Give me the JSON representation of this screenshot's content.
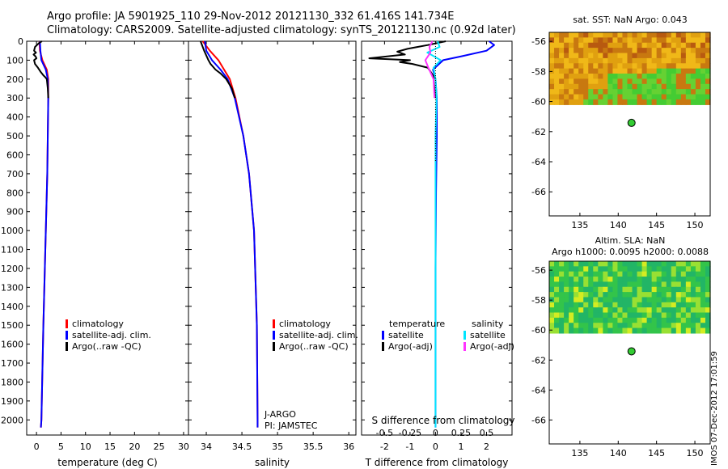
{
  "header": {
    "line1": "Argo profile: JA 5901925_110 29-Nov-2012 20121130_332 61.416S 141.734E",
    "line2": "Climatology: CARS2009. Satellite-adjusted climatology: synTS_20121130.nc (0.92d later)"
  },
  "stamp": "IMOS 07-Dec-2012 17:01:59",
  "colors": {
    "climatology": "#ff0000",
    "satellite": "#0000ff",
    "argo": "#000000",
    "sal_satellite": "#00e5ff",
    "sal_argo": "#ff33ff",
    "marker": "#33cc33"
  },
  "chart_data": [
    {
      "id": "temperature",
      "type": "line",
      "xlabel": "temperature (deg C)",
      "ylabel": "",
      "xlim": [
        -2,
        31
      ],
      "ylim": [
        2080,
        0
      ],
      "xticks": [
        0,
        5,
        10,
        15,
        20,
        25,
        30
      ],
      "yticks": [
        0,
        100,
        200,
        300,
        400,
        500,
        600,
        700,
        800,
        900,
        1000,
        1100,
        1200,
        1300,
        1400,
        1500,
        1600,
        1700,
        1800,
        1900,
        2000
      ],
      "legend": [
        "climatology",
        "satellite-adj. clim.",
        "Argo(..raw -QC)"
      ],
      "series": [
        {
          "name": "climatology",
          "color": "#ff0000",
          "depth": [
            0,
            50,
            100,
            150,
            200,
            300,
            500,
            700,
            1000,
            1500,
            2000,
            2040
          ],
          "values": [
            0.6,
            0.7,
            1.2,
            2.1,
            2.4,
            2.4,
            2.3,
            2.2,
            1.9,
            1.4,
            1.0,
            0.9
          ]
        },
        {
          "name": "satellite-adj. clim.",
          "color": "#0000ff",
          "depth": [
            0,
            50,
            100,
            150,
            200,
            300,
            500,
            700,
            1000,
            1500,
            2000,
            2040
          ],
          "values": [
            0.7,
            0.8,
            1.0,
            1.9,
            2.3,
            2.4,
            2.3,
            2.2,
            1.9,
            1.4,
            1.0,
            0.9
          ]
        },
        {
          "name": "Argo(..raw -QC)",
          "color": "#000000",
          "depth": [
            0,
            10,
            30,
            50,
            60,
            70,
            80,
            90,
            100,
            120,
            140,
            160,
            180,
            190,
            200,
            250,
            300
          ],
          "values": [
            1.1,
            0.5,
            -0.3,
            -0.5,
            -0.1,
            -0.6,
            -0.2,
            0.0,
            -0.5,
            -0.3,
            0.3,
            0.8,
            1.4,
            1.8,
            2.1,
            2.3,
            2.4
          ]
        }
      ]
    },
    {
      "id": "salinity",
      "type": "line",
      "xlabel": "salinity",
      "ylabel": "",
      "xlim": [
        33.75,
        36.1
      ],
      "ylim": [
        2080,
        0
      ],
      "xticks": [
        34,
        34.5,
        35,
        35.5,
        36
      ],
      "xticklabels": [
        "34",
        "34.5",
        "35",
        "35.5",
        "36"
      ],
      "legend": [
        "climatology",
        "satellite-adj. clim.",
        "Argo(..raw -QC)"
      ],
      "annotations": [
        "J-ARGO",
        "PI: JAMSTEC"
      ],
      "series": [
        {
          "name": "climatology",
          "color": "#ff0000",
          "depth": [
            0,
            50,
            100,
            150,
            200,
            300,
            500,
            700,
            1000,
            1500,
            2000,
            2040
          ],
          "values": [
            33.95,
            34.05,
            34.17,
            34.25,
            34.33,
            34.41,
            34.52,
            34.6,
            34.67,
            34.71,
            34.72,
            34.72
          ]
        },
        {
          "name": "satellite-adj. clim.",
          "color": "#0000ff",
          "depth": [
            0,
            50,
            100,
            150,
            200,
            300,
            500,
            700,
            1000,
            1500,
            2000,
            2040
          ],
          "values": [
            33.98,
            34.0,
            34.08,
            34.2,
            34.3,
            34.4,
            34.52,
            34.6,
            34.67,
            34.71,
            34.72,
            34.72
          ]
        },
        {
          "name": "Argo(..raw -QC)",
          "color": "#000000",
          "depth": [
            0,
            50,
            100,
            120,
            150,
            170,
            200,
            250,
            300
          ],
          "values": [
            33.92,
            33.97,
            34.03,
            34.06,
            34.13,
            34.2,
            34.28,
            34.36,
            34.4
          ]
        }
      ]
    },
    {
      "id": "difference",
      "type": "line",
      "xlabel": "T difference from climatology",
      "top_label": "S difference from climatology",
      "xlim": [
        -2.9,
        3.0
      ],
      "ylim": [
        2080,
        0
      ],
      "xticks": [
        -2,
        -1,
        0,
        1,
        2
      ],
      "xticks_top": [
        -0.5,
        -0.25,
        0,
        0.25,
        0.5
      ],
      "legend_headers": [
        "temperature",
        "salinity"
      ],
      "legend": [
        "satellite",
        "Argo(-adj)",
        "satellite",
        "Argo(-adj)"
      ],
      "series": [
        {
          "name": "satellite",
          "group": "temperature",
          "color": "#0000ff",
          "depth": [
            0,
            20,
            50,
            80,
            100,
            150,
            200,
            300,
            500,
            800,
            1200,
            1600,
            2040
          ],
          "values": [
            2.1,
            2.3,
            2.0,
            1.0,
            0.3,
            -0.1,
            0.0,
            0.05,
            0.05,
            0.02,
            0.0,
            0.0,
            0.0
          ]
        },
        {
          "name": "Argo(-adj)",
          "group": "temperature",
          "color": "#000000",
          "depth": [
            0,
            20,
            40,
            55,
            70,
            80,
            90,
            100,
            110,
            120,
            140,
            160,
            180,
            200,
            250,
            300
          ],
          "values": [
            0.4,
            -0.3,
            -1.1,
            -1.5,
            -1.2,
            -1.9,
            -2.6,
            -1.0,
            -1.4,
            -0.9,
            -0.3,
            -0.2,
            -0.1,
            0.0,
            0.0,
            0.0
          ]
        },
        {
          "name": "satellite",
          "group": "salinity",
          "color": "#00e5ff",
          "depth": [
            0,
            30,
            60,
            100,
            140,
            200,
            300,
            500,
            800,
            1200,
            1600,
            2040
          ],
          "values": [
            0.02,
            0.04,
            -0.08,
            0.05,
            -0.02,
            0.0,
            0.01,
            0.0,
            0.0,
            0.0,
            0.0,
            0.0
          ]
        },
        {
          "name": "Argo(-adj)",
          "group": "salinity",
          "color": "#ff33ff",
          "depth": [
            0,
            30,
            60,
            100,
            140,
            200,
            300
          ],
          "values": [
            -0.03,
            -0.06,
            -0.05,
            -0.1,
            -0.07,
            -0.02,
            -0.01
          ]
        }
      ]
    },
    {
      "id": "sst_map",
      "type": "heatmap",
      "title": "sat. SST: NaN Argo: 0.043",
      "xlim": [
        131,
        152
      ],
      "ylim": [
        -67.6,
        -55.4
      ],
      "xticks": [
        135,
        140,
        145,
        150
      ],
      "yticks": [
        -56,
        -58,
        -60,
        -62,
        -64,
        -66
      ],
      "data_ylim": [
        -55.4,
        -60.2
      ],
      "marker": {
        "lon": 141.734,
        "lat": -61.416
      }
    },
    {
      "id": "sla_map",
      "type": "heatmap",
      "title": "Altim. SLA: NaN",
      "subtitle": "Argo h1000: 0.0095 h2000: 0.0088",
      "xlim": [
        131,
        152
      ],
      "ylim": [
        -67.6,
        -55.4
      ],
      "xticks": [
        135,
        140,
        145,
        150
      ],
      "yticks": [
        -56,
        -58,
        -60,
        -62,
        -64,
        -66
      ],
      "data_ylim": [
        -55.4,
        -60.2
      ],
      "marker": {
        "lon": 141.734,
        "lat": -61.416
      }
    }
  ]
}
